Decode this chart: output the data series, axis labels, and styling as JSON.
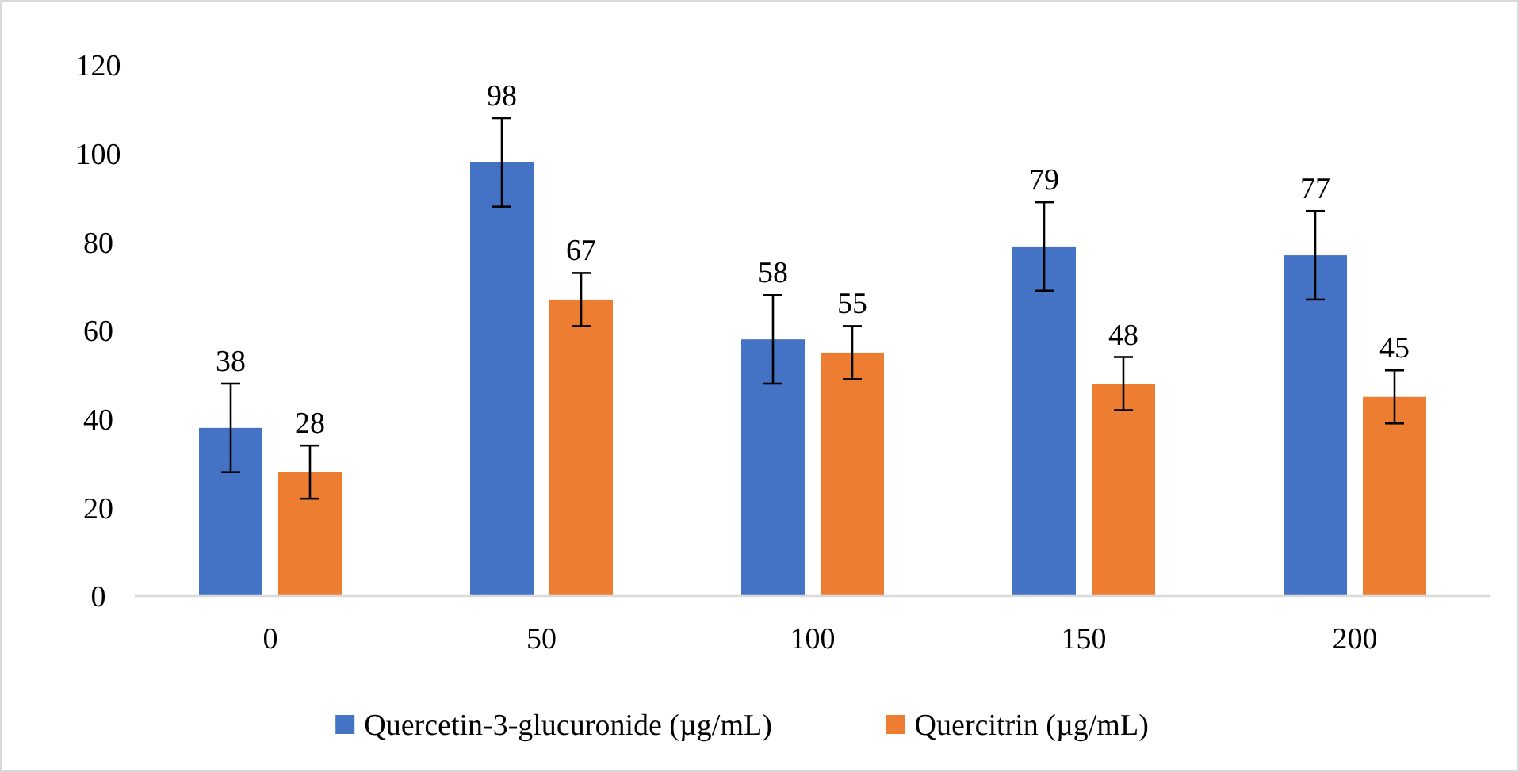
{
  "chart_data": {
    "type": "bar",
    "categories": [
      "0",
      "50",
      "100",
      "150",
      "200"
    ],
    "series": [
      {
        "name": "Quercetin-3-glucuronide (µg/mL)",
        "color": "#4472c4",
        "values": [
          38,
          98,
          58,
          79,
          77
        ],
        "errors": [
          10,
          10,
          10,
          10,
          10
        ]
      },
      {
        "name": "Quercitrin (µg/mL)",
        "color": "#ed7d31",
        "values": [
          28,
          67,
          55,
          48,
          45
        ],
        "errors": [
          6,
          6,
          6,
          6,
          6
        ]
      }
    ],
    "ylim": [
      0,
      120
    ],
    "yticks": [
      0,
      20,
      40,
      60,
      80,
      100,
      120
    ],
    "grid": false,
    "legend": "bottom",
    "data_labels": true
  }
}
